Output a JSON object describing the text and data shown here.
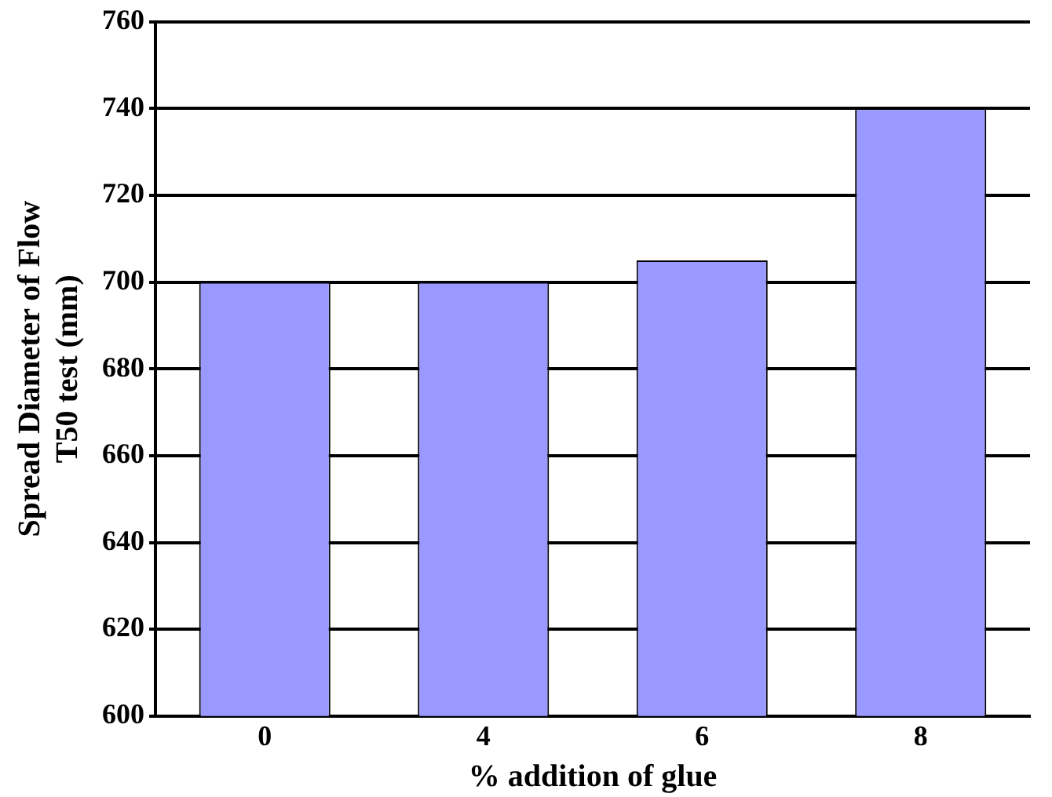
{
  "chart_data": {
    "type": "bar",
    "xlabel": "% addition of glue",
    "ylabel": "Spread Diameter of Flow\nT50 test (mm)",
    "categories": [
      "0",
      "4",
      "6",
      "8"
    ],
    "values": [
      700,
      700,
      705,
      740
    ],
    "color": "#9999ff",
    "ylim": [
      600,
      760
    ],
    "yticks": [
      600,
      620,
      640,
      660,
      680,
      700,
      720,
      740,
      760
    ],
    "grid": "y",
    "legend": false
  }
}
